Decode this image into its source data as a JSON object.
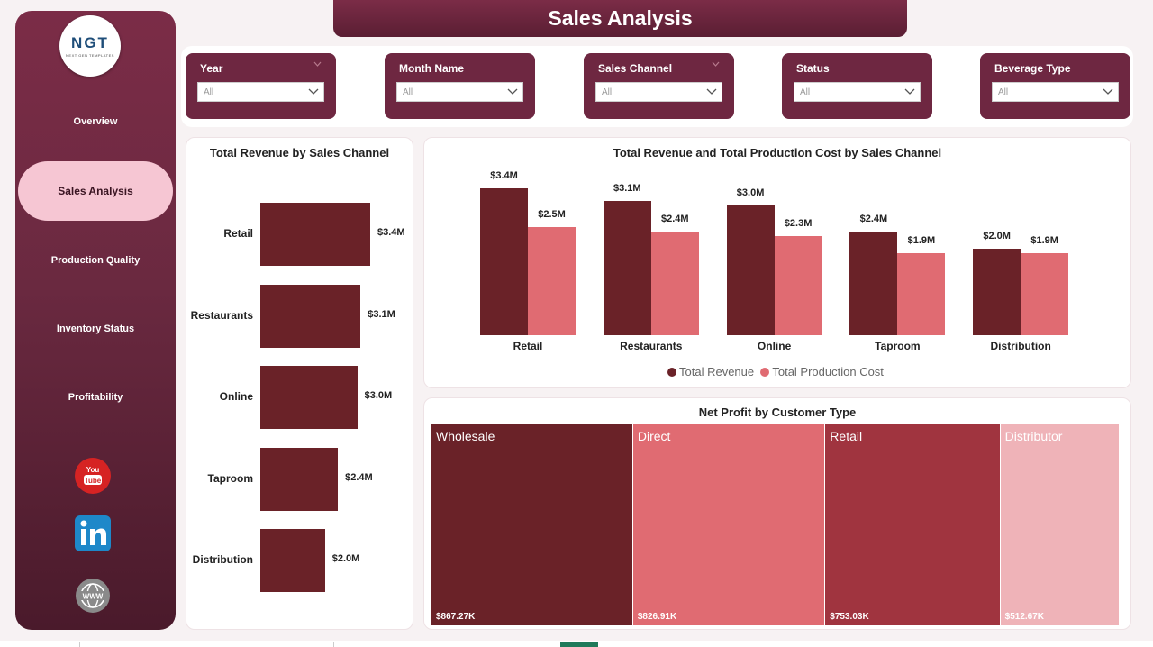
{
  "title": "Sales Analysis",
  "logo": {
    "main": "NGT",
    "sub": "NEXT GEN TEMPLATES"
  },
  "sidebar": {
    "items": [
      {
        "label": "Overview"
      },
      {
        "label": "Sales Analysis",
        "active": true
      },
      {
        "label": "Production Quality"
      },
      {
        "label": "Inventory Status"
      },
      {
        "label": "Profitability"
      }
    ],
    "social": [
      "youtube-icon",
      "linkedin-icon",
      "web-icon"
    ],
    "youtube_text": "You Tube"
  },
  "filters": [
    {
      "label": "Year",
      "value": "All"
    },
    {
      "label": "Month Name",
      "value": "All"
    },
    {
      "label": "Sales Channel",
      "value": "All"
    },
    {
      "label": "Status",
      "value": "All"
    },
    {
      "label": "Beverage Type",
      "value": "All"
    }
  ],
  "colors": {
    "revenue": "#6a2228",
    "cost": "#e06b72",
    "accent": "#6e2741",
    "active_nav": "#f6c6d3"
  },
  "chart_data": [
    {
      "type": "bar",
      "orientation": "horizontal",
      "title": "Total Revenue by Sales Channel",
      "categories": [
        "Retail",
        "Restaurants",
        "Online",
        "Taproom",
        "Distribution"
      ],
      "values": [
        3.4,
        3.1,
        3.0,
        2.4,
        2.0
      ],
      "labels": [
        "$3.4M",
        "$3.1M",
        "$3.0M",
        "$2.4M",
        "$2.0M"
      ],
      "unit": "$M"
    },
    {
      "type": "bar",
      "title": "Total Revenue and Total Production Cost by Sales Channel",
      "categories": [
        "Retail",
        "Restaurants",
        "Online",
        "Taproom",
        "Distribution"
      ],
      "series": [
        {
          "name": "Total Revenue",
          "values": [
            3.4,
            3.1,
            3.0,
            2.4,
            2.0
          ],
          "labels": [
            "$3.4M",
            "$3.1M",
            "$3.0M",
            "$2.4M",
            "$2.0M"
          ]
        },
        {
          "name": "Total Production Cost",
          "values": [
            2.5,
            2.4,
            2.3,
            1.9,
            1.9
          ],
          "labels": [
            "$2.5M",
            "$2.4M",
            "$2.3M",
            "$1.9M",
            "$1.9M"
          ]
        }
      ],
      "legend": "bottom"
    },
    {
      "type": "treemap",
      "title": "Net Profit by Customer Type",
      "categories": [
        "Wholesale",
        "Direct",
        "Retail",
        "Distributor"
      ],
      "values": [
        867.27,
        826.91,
        753.03,
        512.67
      ],
      "labels": [
        "$867.27K",
        "$826.91K",
        "$753.03K",
        "$512.67K"
      ],
      "colors": [
        "#6a2228",
        "#e06b72",
        "#a0343f",
        "#efb3b8"
      ]
    }
  ]
}
